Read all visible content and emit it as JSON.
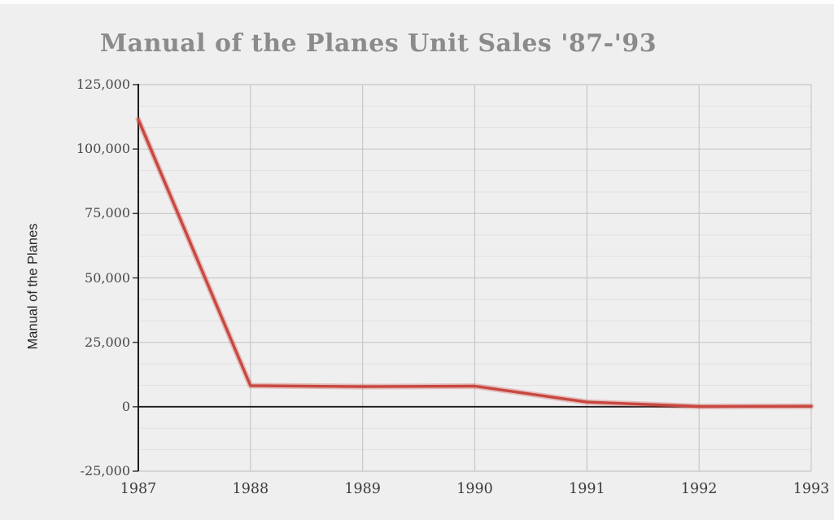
{
  "page": {
    "background_color": "#f0eff0",
    "top_strip_color": "#fdfdfd"
  },
  "chart_data": {
    "type": "line",
    "title": "Manual of the Planes Unit Sales '87-'93",
    "ylabel": "Manual of the Planes",
    "xlabel": "",
    "categories": [
      "1987",
      "1988",
      "1989",
      "1990",
      "1991",
      "1992",
      "1993"
    ],
    "series": [
      {
        "name": "Manual of the Planes",
        "values": [
          111500,
          8200,
          7800,
          8000,
          1800,
          100,
          200
        ]
      }
    ],
    "ylim": [
      -25000,
      125000
    ],
    "ytick_step": 25000,
    "ytick_labels": [
      "125,000",
      "100,000",
      "75,000",
      "50,000",
      "25,000",
      "0",
      "-25,000"
    ],
    "minor_gridlines_per_major": 3,
    "grid": true,
    "legend_position": "none"
  },
  "colors": {
    "line": "#c8473f",
    "line_halo": "rgba(200,71,63,0.30)",
    "major_grid": "#c8c8c8",
    "minor_grid": "#e1e1e1",
    "vertical_grid": "#c8c8c8",
    "axis_spine": "#1c1c1c",
    "zero_line": "#1c1c1c",
    "tick_mark": "#3a3a3a",
    "title_text": "#8b8b8b",
    "tick_text": "#474747"
  }
}
